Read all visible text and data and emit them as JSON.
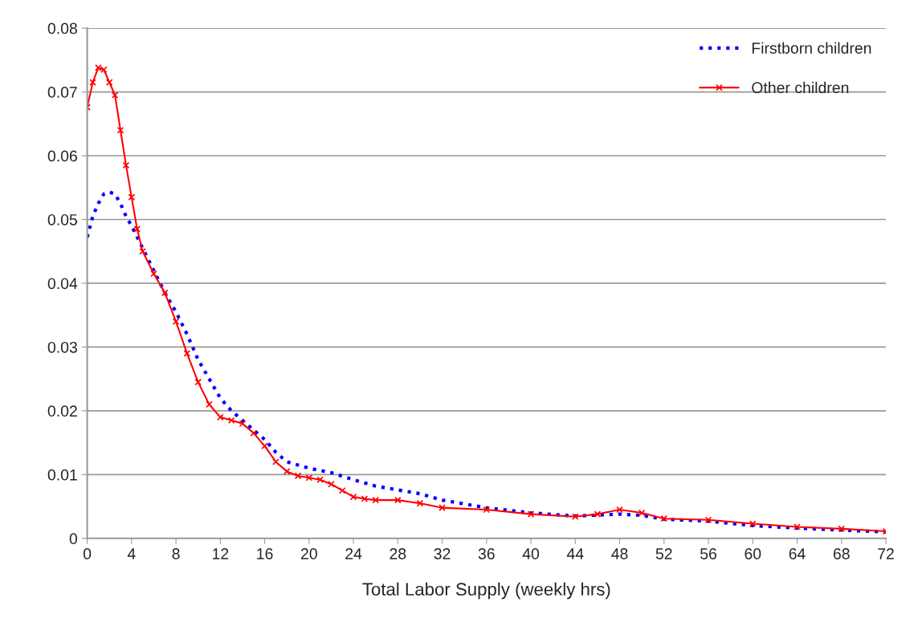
{
  "chart_data": {
    "type": "line",
    "xlabel": "Total Labor Supply (weekly hrs)",
    "xlim": [
      0,
      72
    ],
    "xticks": [
      0,
      4,
      8,
      12,
      16,
      20,
      24,
      28,
      32,
      36,
      40,
      44,
      48,
      52,
      56,
      60,
      64,
      68,
      72
    ],
    "ylim": [
      0,
      0.08
    ],
    "yticks": [
      {
        "value": 0,
        "label": "0"
      },
      0.01,
      0.02,
      0.03,
      0.04,
      0.05,
      0.06,
      0.07,
      0.08
    ],
    "grid": "y",
    "legend": "top right",
    "series": [
      {
        "name": "Firstborn children",
        "color": "#0000ff",
        "line_style": "dotted",
        "marker": "none",
        "x": [
          0,
          0.5,
          1,
          1.5,
          2,
          2.5,
          3,
          3.5,
          4,
          5,
          6,
          7,
          8,
          9,
          10,
          11,
          12,
          13,
          14,
          15,
          16,
          17,
          18,
          20,
          22,
          24,
          26,
          28,
          30,
          32,
          36,
          40,
          44,
          48,
          50,
          52,
          56,
          60,
          64,
          68,
          72
        ],
        "values": [
          0.0472,
          0.0505,
          0.0525,
          0.054,
          0.0543,
          0.054,
          0.0525,
          0.0505,
          0.049,
          0.0455,
          0.042,
          0.0385,
          0.0355,
          0.032,
          0.028,
          0.025,
          0.022,
          0.02,
          0.0185,
          0.017,
          0.0155,
          0.0135,
          0.012,
          0.011,
          0.0103,
          0.0092,
          0.0082,
          0.0076,
          0.007,
          0.006,
          0.0048,
          0.004,
          0.0035,
          0.0038,
          0.0036,
          0.003,
          0.0027,
          0.002,
          0.0016,
          0.0013,
          0.001
        ]
      },
      {
        "name": "Other children",
        "color": "#ff0000",
        "line_style": "solid",
        "marker": "cross",
        "x": [
          0,
          0.5,
          1,
          1.5,
          2,
          2.5,
          3,
          3.5,
          4,
          4.5,
          5,
          6,
          7,
          8,
          9,
          10,
          11,
          12,
          13,
          14,
          15,
          16,
          17,
          18,
          19,
          20,
          21,
          22,
          23,
          24,
          25,
          26,
          28,
          30,
          32,
          36,
          40,
          44,
          46,
          48,
          50,
          52,
          56,
          60,
          64,
          68,
          72
        ],
        "values": [
          0.0676,
          0.0715,
          0.0738,
          0.0735,
          0.0715,
          0.0695,
          0.064,
          0.0585,
          0.0535,
          0.0485,
          0.045,
          0.0415,
          0.0385,
          0.034,
          0.029,
          0.0245,
          0.021,
          0.019,
          0.0185,
          0.018,
          0.0165,
          0.0145,
          0.012,
          0.0105,
          0.0098,
          0.0095,
          0.0092,
          0.0085,
          0.0075,
          0.0065,
          0.0062,
          0.006,
          0.006,
          0.0055,
          0.0048,
          0.0045,
          0.0038,
          0.0034,
          0.0038,
          0.0045,
          0.004,
          0.0031,
          0.0029,
          0.0023,
          0.0018,
          0.0015,
          0.0011
        ]
      }
    ]
  }
}
